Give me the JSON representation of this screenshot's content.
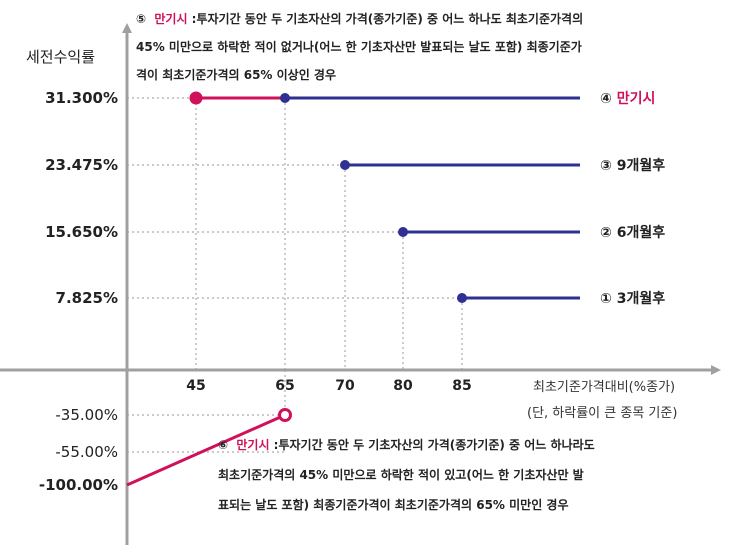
{
  "chart_data": {
    "type": "line",
    "y_title": "세전수익률",
    "x_title_line1": "최초기준가격대비(%종가)",
    "x_title_line2": "(단, 하락률이 큰 종목 기준)",
    "x_ticks": [
      {
        "value": 45,
        "label": "45"
      },
      {
        "value": 65,
        "label": "65"
      },
      {
        "value": 70,
        "label": "70"
      },
      {
        "value": 80,
        "label": "80"
      },
      {
        "value": 85,
        "label": "85"
      }
    ],
    "y_ticks": [
      {
        "value": 31.3,
        "label": "31.300%",
        "bold": true
      },
      {
        "value": 23.475,
        "label": "23.475%",
        "bold": true
      },
      {
        "value": 15.65,
        "label": "15.650%",
        "bold": true
      },
      {
        "value": 7.825,
        "label": "7.825%",
        "bold": true
      },
      {
        "value": -35,
        "label": "-35.00%",
        "bold": false
      },
      {
        "value": -55,
        "label": "-55.00%",
        "bold": false
      },
      {
        "value": -100,
        "label": "-100.00%",
        "bold": true
      }
    ],
    "series": [
      {
        "name": "① 3개월후",
        "x_start": 85,
        "y": 7.825,
        "color": "#2e3192"
      },
      {
        "name": "② 6개월후",
        "x_start": 80,
        "y": 15.65,
        "color": "#2e3192"
      },
      {
        "name": "③ 9개월후",
        "x_start": 70,
        "y": 23.475,
        "color": "#2e3192"
      },
      {
        "name_prefix": "④ ",
        "name": "만기시",
        "x_start": 65,
        "y": 31.3,
        "color": "#2e3192",
        "label_color": "#d0105a"
      }
    ],
    "maturity_gain_segment": {
      "x_start": 45,
      "x_end": 65,
      "y": 31.3,
      "color": "#d0105a"
    },
    "loss_segment": {
      "x_start": 0,
      "y_start": -100,
      "x_end": 65,
      "y_end": -35,
      "color": "#d0105a",
      "open_end": true
    }
  },
  "notes": {
    "top": {
      "num": "⑤",
      "title": "만기시",
      "lines": [
        ":투자기간 동안 두 기초자산의 가격(종가기준) 중 어느 하나도 최초기준가격의",
        "45% 미만으로 하락한 적이 없거나(어느 한 기초자산만 발표되는 날도 포함) 최종기준가",
        "격이 최초기준가격의 65% 이상인 경우"
      ]
    },
    "bottom": {
      "num": "⑥",
      "title": "만기시",
      "lines": [
        ":투자기간 동안 두 기초자산의 가격(종가기준) 중 어느 하나라도",
        "최초기준가격의 45% 미만으로 하락한 적이 있고(어느 한 기초자산만 발",
        "표되는 날도 포함) 최종기준가격이 최초기준가격의 65% 미만인 경우"
      ]
    }
  },
  "colors": {
    "axis": "#a0a0a0",
    "series": "#2e3192",
    "accent": "#d0105a",
    "grid": "#aaaaaa"
  }
}
